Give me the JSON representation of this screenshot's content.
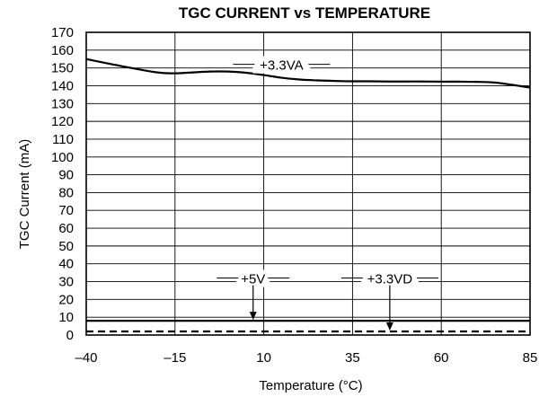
{
  "chart_data": {
    "type": "line",
    "title": "TGC CURRENT vs TEMPERATURE",
    "xlabel": "Temperature (°C)",
    "ylabel": "TGC Current (mA)",
    "xlim": [
      -40,
      85
    ],
    "ylim": [
      0,
      170
    ],
    "x_ticks": [
      "–40",
      "–15",
      "10",
      "35",
      "60",
      "85"
    ],
    "x_tick_values": [
      -40,
      -15,
      10,
      35,
      60,
      85
    ],
    "y_ticks": [
      "0",
      "10",
      "20",
      "30",
      "40",
      "50",
      "60",
      "70",
      "80",
      "90",
      "100",
      "110",
      "120",
      "130",
      "140",
      "150",
      "160",
      "170"
    ],
    "y_tick_values": [
      0,
      10,
      20,
      30,
      40,
      50,
      60,
      70,
      80,
      90,
      100,
      110,
      120,
      130,
      140,
      150,
      160,
      170
    ],
    "grid": true,
    "series": [
      {
        "name": "+3.3VA",
        "line_style": "solid",
        "x": [
          -40,
          -30,
          -20,
          -15,
          -10,
          -5,
          0,
          5,
          10,
          15,
          20,
          25,
          30,
          35,
          40,
          45,
          50,
          55,
          60,
          65,
          70,
          75,
          80,
          85
        ],
        "y": [
          155,
          151,
          147.5,
          147,
          147.5,
          148,
          148,
          147.3,
          146,
          144.5,
          143.5,
          143,
          142.7,
          142.5,
          142.5,
          142.4,
          142.4,
          142.4,
          142.3,
          142.3,
          142.2,
          141.8,
          140.5,
          139
        ]
      },
      {
        "name": "+5V",
        "line_style": "solid",
        "x": [
          -40,
          85
        ],
        "y": [
          8,
          8
        ]
      },
      {
        "name": "+3.3VD",
        "line_style": "dashed",
        "x": [
          -40,
          85
        ],
        "y": [
          2,
          2
        ]
      }
    ],
    "annotations": [
      {
        "text": "+3.3VA",
        "series": "+3.3VA",
        "x": 15,
        "y": 151
      },
      {
        "text": "+5V",
        "series": "+5V",
        "x": 7,
        "y": 31,
        "arrow_to": 8
      },
      {
        "text": "+3.3VD",
        "series": "+3.3VD",
        "x": 45.5,
        "y": 31,
        "arrow_to": 2
      }
    ],
    "colors": {
      "line": "#000000",
      "grid": "#000000",
      "background": "#ffffff"
    }
  }
}
